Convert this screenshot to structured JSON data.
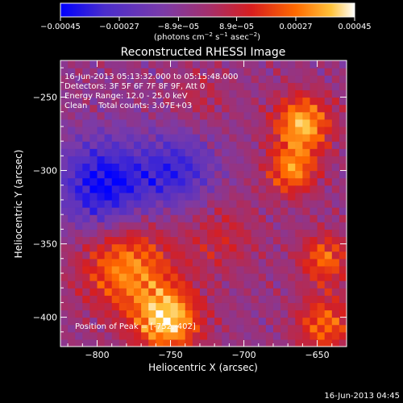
{
  "chart_data": {
    "type": "heatmap",
    "title": "Reconstructed RHESSI Image",
    "xlabel": "Heliocentric X (arcsec)",
    "ylabel": "Heliocentric Y (arcsec)",
    "xlim": [
      -825,
      -630
    ],
    "ylim": [
      -420,
      -225
    ],
    "x_ticks": [
      -800,
      -750,
      -700,
      -650
    ],
    "x_tick_labels": [
      "−800",
      "−750",
      "−700",
      "−650"
    ],
    "y_ticks": [
      -250,
      -300,
      -350,
      -400
    ],
    "y_tick_labels": [
      "−250",
      "−300",
      "−350",
      "−400"
    ],
    "colorbar": {
      "range": [
        -0.00045,
        0.00045
      ],
      "ticks": [
        -0.00045,
        -0.00027,
        -8.9e-05,
        8.9e-05,
        0.00027,
        0.00045
      ],
      "tick_labels": [
        "−0.00045",
        "−0.00027",
        "−8.9e−05",
        "8.9e−05",
        "0.00027",
        "0.00045"
      ],
      "units_main": "(photons cm",
      "units_exp1": "−2",
      "units_mid": " s",
      "units_exp2": "−1",
      "units_mid2": " asec",
      "units_exp3": "−2",
      "units_close": ")",
      "colormap": [
        "#0000ff",
        "#4a2dcc",
        "#7b3ba8",
        "#a3306e",
        "#d81e1e",
        "#ff6a00",
        "#ffc23a",
        "#ffffff"
      ]
    },
    "sources": [
      {
        "x": -660,
        "y": -268,
        "amplitude": 0.00042,
        "sigma": 14
      },
      {
        "x": -667,
        "y": -300,
        "amplitude": 0.00034,
        "sigma": 12
      },
      {
        "x": -780,
        "y": -365,
        "amplitude": 0.00036,
        "sigma": 22
      },
      {
        "x": -752,
        "y": -402,
        "amplitude": 0.00045,
        "sigma": 16
      },
      {
        "x": -645,
        "y": -360,
        "amplitude": 0.0003,
        "sigma": 12
      },
      {
        "x": -645,
        "y": -405,
        "amplitude": 0.0003,
        "sigma": 14
      },
      {
        "x": -715,
        "y": -345,
        "amplitude": 0.00014,
        "sigma": 18
      },
      {
        "x": -730,
        "y": -250,
        "amplitude": 0.0001,
        "sigma": 14
      },
      {
        "x": -795,
        "y": -310,
        "amplitude": -0.0004,
        "sigma": 22
      },
      {
        "x": -745,
        "y": -300,
        "amplitude": -0.00028,
        "sigma": 18
      }
    ],
    "annotations": {
      "time_range": "16-Jun-2013 05:13:32.000 to 05:15:48.000",
      "detectors": "Detectors: 3F 5F 6F 7F 8F 9F, Att 0",
      "energy": "Energy Range: 12.0 - 25.0 keV",
      "clean": "Clean",
      "counts": "Total counts: 3.07E+03",
      "peak": "Position of Peak = [-752,-402]"
    }
  },
  "footer_timestamp": "16-Jun-2013 04:45"
}
